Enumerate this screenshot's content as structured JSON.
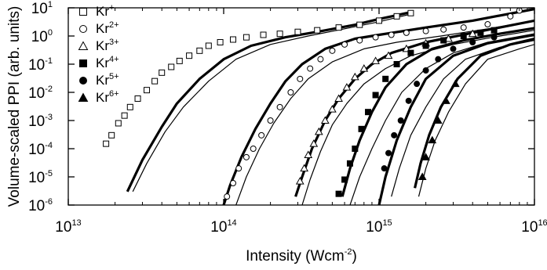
{
  "chart_data": {
    "type": "scatter",
    "title": "",
    "xlabel_main": "Intensity (Wcm",
    "xlabel_sup": "-2",
    "xlabel_end": ")",
    "ylabel": "Volume-scaled PPI (arb. units)",
    "xscale": "log",
    "yscale": "log",
    "xlim": [
      10000000000000.0,
      1e+16
    ],
    "ylim": [
      1e-06,
      10
    ],
    "x_ticks": [
      {
        "value": 10000000000000.0,
        "base": "10",
        "exp": "13"
      },
      {
        "value": 100000000000000.0,
        "base": "10",
        "exp": "14"
      },
      {
        "value": 1000000000000000.0,
        "base": "10",
        "exp": "15"
      },
      {
        "value": 1e+16,
        "base": "10",
        "exp": "16"
      }
    ],
    "y_ticks": [
      {
        "value": 10,
        "base": "10",
        "exp": "1"
      },
      {
        "value": 1,
        "base": "10",
        "exp": "0"
      },
      {
        "value": 0.1,
        "base": "10",
        "exp": "-1"
      },
      {
        "value": 0.01,
        "base": "10",
        "exp": "-2"
      },
      {
        "value": 0.001,
        "base": "10",
        "exp": "-3"
      },
      {
        "value": 0.0001,
        "base": "10",
        "exp": "-4"
      },
      {
        "value": 1e-05,
        "base": "10",
        "exp": "-5"
      },
      {
        "value": 1e-06,
        "base": "10",
        "exp": "-6"
      }
    ],
    "legend_position": "top-left",
    "series": [
      {
        "name_base": "Kr",
        "name_sup": "+",
        "marker": "open-square",
        "x": [
          17500000000000.0,
          19000000000000.0,
          21000000000000.0,
          23000000000000.0,
          25000000000000.0,
          28000000000000.0,
          32000000000000.0,
          36000000000000.0,
          40000000000000.0,
          46000000000000.0,
          52000000000000.0,
          60000000000000.0,
          70000000000000.0,
          80000000000000.0,
          95000000000000.0,
          115000000000000.0,
          140000000000000.0,
          180000000000000.0,
          230000000000000.0,
          300000000000000.0,
          400000000000000.0,
          550000000000000.0,
          750000000000000.0,
          1000000000000000.0,
          1300000000000000.0,
          1600000000000000.0
        ],
        "y": [
          0.00015,
          0.0003,
          0.0008,
          0.0015,
          0.003,
          0.006,
          0.012,
          0.025,
          0.05,
          0.08,
          0.13,
          0.2,
          0.3,
          0.45,
          0.6,
          0.75,
          0.9,
          1.1,
          1.2,
          1.4,
          1.6,
          2.0,
          2.5,
          3.5,
          5.0,
          6.5
        ]
      },
      {
        "name_base": "Kr",
        "name_sup": "2+",
        "marker": "open-circle",
        "x": [
          105000000000000.0,
          115000000000000.0,
          125000000000000.0,
          140000000000000.0,
          155000000000000.0,
          175000000000000.0,
          200000000000000.0,
          230000000000000.0,
          270000000000000.0,
          310000000000000.0,
          360000000000000.0,
          420000000000000.0,
          500000000000000.0,
          600000000000000.0,
          750000000000000.0,
          950000000000000.0,
          1200000000000000.0,
          1500000000000000.0,
          2000000000000000.0,
          2600000000000000.0,
          3500000000000000.0,
          5000000000000000.0,
          7000000000000000.0,
          8000000000000000.0
        ],
        "y": [
          2e-06,
          6e-06,
          2e-05,
          5e-05,
          0.0001,
          0.0003,
          0.001,
          0.003,
          0.01,
          0.03,
          0.07,
          0.15,
          0.3,
          0.5,
          0.7,
          0.9,
          1.1,
          1.3,
          1.5,
          1.7,
          2.0,
          2.6,
          5.0,
          8.0
        ]
      },
      {
        "name_base": "Kr",
        "name_sup": "3+",
        "marker": "open-triangle",
        "x": [
          310000000000000.0,
          330000000000000.0,
          350000000000000.0,
          380000000000000.0,
          410000000000000.0,
          450000000000000.0,
          500000000000000.0,
          550000000000000.0,
          620000000000000.0,
          700000000000000.0,
          800000000000000.0,
          950000000000000.0,
          1150000000000000.0,
          1500000000000000.0,
          2000000000000000.0,
          2800000000000000.0,
          4000000000000000.0
        ],
        "y": [
          7e-06,
          2e-05,
          6e-05,
          0.00015,
          0.0004,
          0.001,
          0.0025,
          0.006,
          0.015,
          0.035,
          0.07,
          0.13,
          0.2,
          0.35,
          0.55,
          0.8,
          1.2
        ]
      },
      {
        "name_base": "Kr",
        "name_sup": "4+",
        "marker": "filled-square",
        "x": [
          550000000000000.0,
          600000000000000.0,
          650000000000000.0,
          700000000000000.0,
          770000000000000.0,
          850000000000000.0,
          950000000000000.0,
          1100000000000000.0,
          1300000000000000.0,
          1600000000000000.0,
          2000000000000000.0,
          2600000000000000.0,
          3500000000000000.0,
          4500000000000000.0,
          5500000000000000.0
        ],
        "y": [
          2.5e-06,
          8e-06,
          3e-05,
          0.0001,
          0.0005,
          0.002,
          0.008,
          0.03,
          0.1,
          0.25,
          0.45,
          0.7,
          1.0,
          1.3,
          1.6
        ]
      },
      {
        "name_base": "Kr",
        "name_sup": "5+",
        "marker": "filled-circle",
        "x": [
          1080000000000000.0,
          1150000000000000.0,
          1250000000000000.0,
          1380000000000000.0,
          1550000000000000.0,
          1750000000000000.0,
          2000000000000000.0,
          2400000000000000.0,
          3000000000000000.0,
          4000000000000000.0,
          5500000000000000.0
        ],
        "y": [
          2e-05,
          7e-05,
          0.0003,
          0.001,
          0.005,
          0.02,
          0.06,
          0.15,
          0.35,
          0.6,
          0.9
        ]
      },
      {
        "name_base": "Kr",
        "name_sup": "6+",
        "marker": "filled-triangle",
        "x": [
          1900000000000000.0,
          2000000000000000.0,
          2200000000000000.0,
          2400000000000000.0,
          2700000000000000.0,
          3100000000000000.0
        ],
        "y": [
          1e-05,
          5e-05,
          0.0002,
          0.001,
          0.005,
          0.02
        ]
      }
    ],
    "curves_thick": [
      {
        "x": [
          24000000000000.0,
          30000000000000.0,
          40000000000000.0,
          50000000000000.0,
          70000000000000.0,
          100000000000000.0,
          150000000000000.0,
          250000000000000.0,
          400000000000000.0,
          700000000000000.0,
          1000000000000000.0,
          1600000000000000.0
        ],
        "y": [
          3e-06,
          4e-05,
          0.0006,
          0.004,
          0.03,
          0.15,
          0.45,
          0.9,
          1.4,
          2.5,
          4,
          7
        ]
      },
      {
        "x": [
          100000000000000.0,
          110000000000000.0,
          130000000000000.0,
          160000000000000.0,
          200000000000000.0,
          250000000000000.0,
          320000000000000.0,
          450000000000000.0,
          700000000000000.0,
          1000000000000000.0,
          2000000000000000.0,
          4000000000000000.0,
          1e+16
        ],
        "y": [
          1e-06,
          5e-06,
          5e-05,
          0.0005,
          0.004,
          0.025,
          0.1,
          0.35,
          0.8,
          1.1,
          2,
          3.5,
          9
        ]
      },
      {
        "x": [
          290000000000000.0,
          320000000000000.0,
          370000000000000.0,
          450000000000000.0,
          550000000000000.0,
          700000000000000.0,
          900000000000000.0,
          1200000000000000.0,
          2000000000000000.0,
          4000000000000000.0,
          1e+16
        ],
        "y": [
          2e-06,
          1e-05,
          0.0001,
          0.001,
          0.006,
          0.03,
          0.1,
          0.25,
          0.6,
          1.3,
          3.5
        ]
      },
      {
        "x": [
          580000000000000.0,
          650000000000000.0,
          750000000000000.0,
          900000000000000.0,
          1100000000000000.0,
          1500000000000000.0,
          2200000000000000.0,
          3500000000000000.0,
          6000000000000000.0,
          1e+16
        ],
        "y": [
          2e-06,
          2e-05,
          0.0002,
          0.002,
          0.015,
          0.1,
          0.35,
          0.7,
          1.2,
          1.9
        ]
      },
      {
        "x": [
          1000000000000000.0,
          1100000000000000.0,
          1300000000000000.0,
          1600000000000000.0,
          2000000000000000.0,
          3000000000000000.0,
          5000000000000000.0,
          1e+16
        ],
        "y": [
          1e-06,
          1e-05,
          0.0002,
          0.003,
          0.03,
          0.2,
          0.55,
          1.1
        ]
      },
      {
        "x": [
          1700000000000000.0,
          1850000000000000.0,
          2100000000000000.0,
          2500000000000000.0,
          3200000000000000.0,
          4500000000000000.0,
          7000000000000000.0,
          1e+16
        ],
        "y": [
          4e-06,
          3e-05,
          0.0003,
          0.003,
          0.03,
          0.2,
          0.5,
          0.8
        ]
      }
    ],
    "curves_thin": [
      {
        "x": [
          26000000000000.0,
          32000000000000.0,
          42000000000000.0,
          55000000000000.0,
          80000000000000.0,
          120000000000000.0,
          200000000000000.0,
          350000000000000.0,
          600000000000000.0,
          1000000000000000.0,
          1600000000000000.0
        ],
        "y": [
          3e-06,
          3e-05,
          0.0004,
          0.003,
          0.025,
          0.15,
          0.5,
          1.0,
          1.8,
          3.2,
          6
        ]
      },
      {
        "x": [
          120000000000000.0,
          140000000000000.0,
          170000000000000.0,
          210000000000000.0,
          270000000000000.0,
          350000000000000.0,
          500000000000000.0,
          800000000000000.0,
          1300000000000000.0,
          2500000000000000.0,
          5000000000000000.0,
          1e+16
        ],
        "y": [
          1e-06,
          1e-05,
          0.0001,
          0.0008,
          0.006,
          0.03,
          0.12,
          0.35,
          0.6,
          1.0,
          1.8,
          3.5
        ]
      },
      {
        "x": [
          320000000000000.0,
          360000000000000.0,
          420000000000000.0,
          500000000000000.0,
          620000000000000.0,
          800000000000000.0,
          1100000000000000.0,
          1600000000000000.0,
          3000000000000000.0,
          6000000000000000.0,
          1e+16
        ],
        "y": [
          1e-06,
          8e-06,
          8e-05,
          0.0007,
          0.004,
          0.02,
          0.07,
          0.2,
          0.5,
          1.0,
          1.6
        ]
      },
      {
        "x": [
          650000000000000.0,
          750000000000000.0,
          900000000000000.0,
          1100000000000000.0,
          1400000000000000.0,
          2000000000000000.0,
          3000000000000000.0,
          5000000000000000.0,
          1e+16
        ],
        "y": [
          1e-06,
          1e-05,
          0.0001,
          0.001,
          0.01,
          0.07,
          0.25,
          0.6,
          1.2
        ]
      },
      {
        "x": [
          1200000000000000.0,
          1350000000000000.0,
          1600000000000000.0,
          2000000000000000.0,
          2600000000000000.0,
          3600000000000000.0,
          6000000000000000.0,
          1e+16
        ],
        "y": [
          2e-06,
          2e-05,
          0.0003,
          0.003,
          0.03,
          0.15,
          0.4,
          0.7
        ]
      },
      {
        "x": [
          1800000000000000.0,
          2000000000000000.0,
          2300000000000000.0,
          2800000000000000.0,
          3600000000000000.0,
          5000000000000000.0,
          8000000000000000.0,
          1e+16
        ],
        "y": [
          2e-06,
          2e-05,
          0.0002,
          0.002,
          0.02,
          0.15,
          0.35,
          0.5
        ]
      }
    ]
  }
}
